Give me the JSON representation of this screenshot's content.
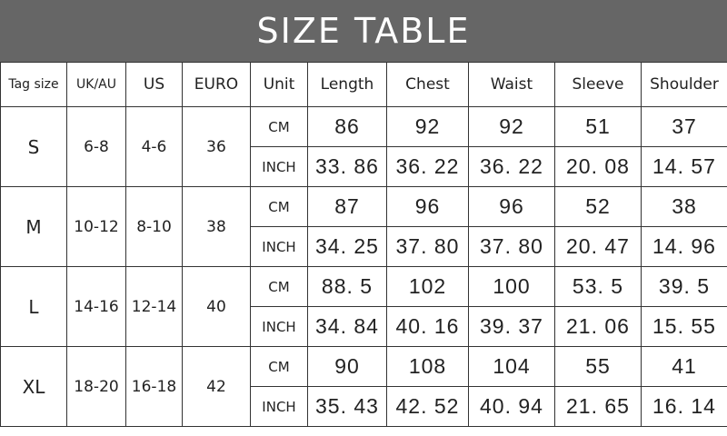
{
  "title": "SIZE TABLE",
  "columns": [
    "Tag size",
    "UK/AU",
    "US",
    "EURO",
    "Unit",
    "Length",
    "Chest",
    "Waist",
    "Sleeve",
    "Shoulder"
  ],
  "rows": [
    {
      "tag": "S",
      "uk": "6-8",
      "us": "4-6",
      "euro": "36",
      "cm": {
        "unit": "CM",
        "values": [
          "86",
          "92",
          "92",
          "51",
          "37"
        ]
      },
      "inch": {
        "unit": "INCH",
        "values": [
          "33. 86",
          "36. 22",
          "36. 22",
          "20. 08",
          "14. 57"
        ]
      }
    },
    {
      "tag": "M",
      "uk": "10-12",
      "us": "8-10",
      "euro": "38",
      "cm": {
        "unit": "CM",
        "values": [
          "87",
          "96",
          "96",
          "52",
          "38"
        ]
      },
      "inch": {
        "unit": "INCH",
        "values": [
          "34. 25",
          "37. 80",
          "37. 80",
          "20. 47",
          "14. 96"
        ]
      }
    },
    {
      "tag": "L",
      "uk": "14-16",
      "us": "12-14",
      "euro": "40",
      "cm": {
        "unit": "CM",
        "values": [
          "88. 5",
          "102",
          "100",
          "53. 5",
          "39. 5"
        ]
      },
      "inch": {
        "unit": "INCH",
        "values": [
          "34. 84",
          "40. 16",
          "39. 37",
          "21. 06",
          "15. 55"
        ]
      }
    },
    {
      "tag": "XL",
      "uk": "18-20",
      "us": "16-18",
      "euro": "42",
      "cm": {
        "unit": "CM",
        "values": [
          "90",
          "108",
          "104",
          "55",
          "41"
        ]
      },
      "inch": {
        "unit": "INCH",
        "values": [
          "35. 43",
          "42. 52",
          "40. 94",
          "21. 65",
          "16. 14"
        ]
      }
    }
  ]
}
